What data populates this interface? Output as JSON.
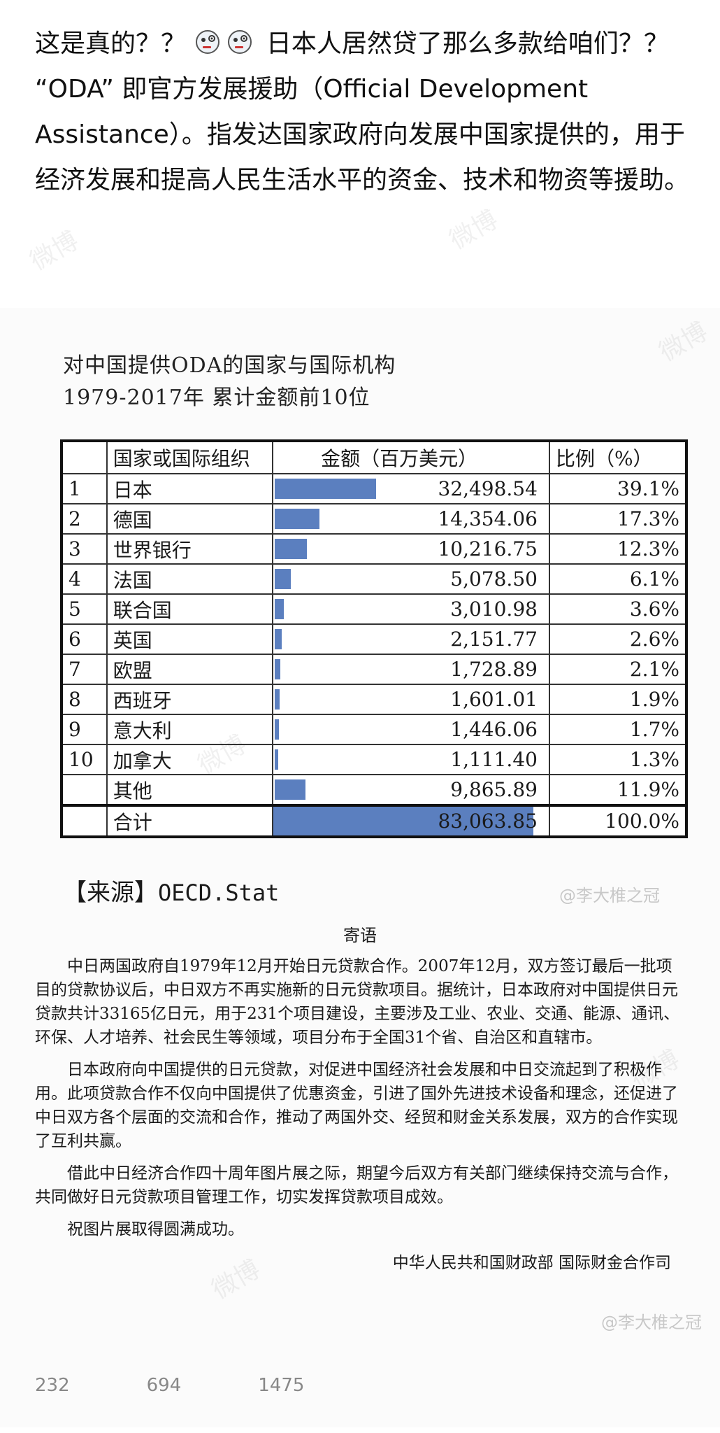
{
  "post": {
    "line1": "这是真的？？",
    "line1b": "日本人居然贷了那么多款给咱们？？",
    "line2": "“ODA” 即官方发展援助（Official Development Assistance）。指发达国家政府向发展中国家提供的，用于经济发展和提高人民生活水平的资金、技术和物资等援助。",
    "emoji_icon": "thinking-face-icon"
  },
  "chart": {
    "title_line1": "对中国提供ODA的国家与国际机构",
    "title_line2": "1979-2017年  累计金额前10位",
    "headers": [
      "",
      "国家或国际组织",
      "金额（百万美元）",
      "比例（%）"
    ],
    "bar_color": "#5b7fbf",
    "source_label": "【来源】",
    "source_value": "OECD.Stat"
  },
  "chart_data": {
    "type": "table",
    "title": "对中国提供ODA的国家与国际机构 1979-2017年 累计金额前10位",
    "columns": [
      "",
      "国家或国际组织",
      "金额（百万美元）",
      "比例（%）"
    ],
    "rows": [
      {
        "rank": "1",
        "name": "日本",
        "amount": "32,498.54",
        "value": 32498.54,
        "pct": "39.1%"
      },
      {
        "rank": "2",
        "name": "德国",
        "amount": "14,354.06",
        "value": 14354.06,
        "pct": "17.3%"
      },
      {
        "rank": "3",
        "name": "世界银行",
        "amount": "10,216.75",
        "value": 10216.75,
        "pct": "12.3%"
      },
      {
        "rank": "4",
        "name": "法国",
        "amount": "5,078.50",
        "value": 5078.5,
        "pct": "6.1%"
      },
      {
        "rank": "5",
        "name": "联合国",
        "amount": "3,010.98",
        "value": 3010.98,
        "pct": "3.6%"
      },
      {
        "rank": "6",
        "name": "英国",
        "amount": "2,151.77",
        "value": 2151.77,
        "pct": "2.6%"
      },
      {
        "rank": "7",
        "name": "欧盟",
        "amount": "1,728.89",
        "value": 1728.89,
        "pct": "2.1%"
      },
      {
        "rank": "8",
        "name": "西班牙",
        "amount": "1,601.01",
        "value": 1601.01,
        "pct": "1.9%"
      },
      {
        "rank": "9",
        "name": "意大利",
        "amount": "1,446.06",
        "value": 1446.06,
        "pct": "1.7%"
      },
      {
        "rank": "10",
        "name": "加拿大",
        "amount": "1,111.40",
        "value": 1111.4,
        "pct": "1.3%"
      },
      {
        "rank": "",
        "name": "其他",
        "amount": "9,865.89",
        "value": 9865.89,
        "pct": "11.9%"
      }
    ],
    "total": {
      "name": "合计",
      "amount": "83,063.85",
      "value": 83063.85,
      "pct": "100.0%"
    }
  },
  "watermark": {
    "handle": "@李大椎之冠",
    "brand": "微博"
  },
  "letter": {
    "heading": "寄语",
    "p1": "中日两国政府自1979年12月开始日元贷款合作。2007年12月，双方签订最后一批项目的贷款协议后，中日双方不再实施新的日元贷款项目。据统计，日本政府对中国提供日元贷款共计33165亿日元，用于231个项目建设，主要涉及工业、农业、交通、能源、通讯、环保、人才培养、社会民生等领域，项目分布于全国31个省、自治区和直辖市。",
    "p2": "日本政府向中国提供的日元贷款，对促进中国经济社会发展和中日交流起到了积极作用。此项贷款合作不仅向中国提供了优惠资金，引进了国外先进技术设备和理念，还促进了中日双方各个层面的交流和合作，推动了两国外交、经贸和财金关系发展，双方的合作实现了互利共赢。",
    "p3": "借此中日经济合作四十周年图片展之际，期望今后双方有关部门继续保持交流与合作，共同做好日元贷款项目管理工作，切实发挥贷款项目成效。",
    "p4": "祝图片展取得圆满成功。",
    "signature": "中华人民共和国财政部    国际财金合作司"
  },
  "actions": {
    "repost_count": "232",
    "comment_count": "694",
    "like_count": "1475"
  }
}
